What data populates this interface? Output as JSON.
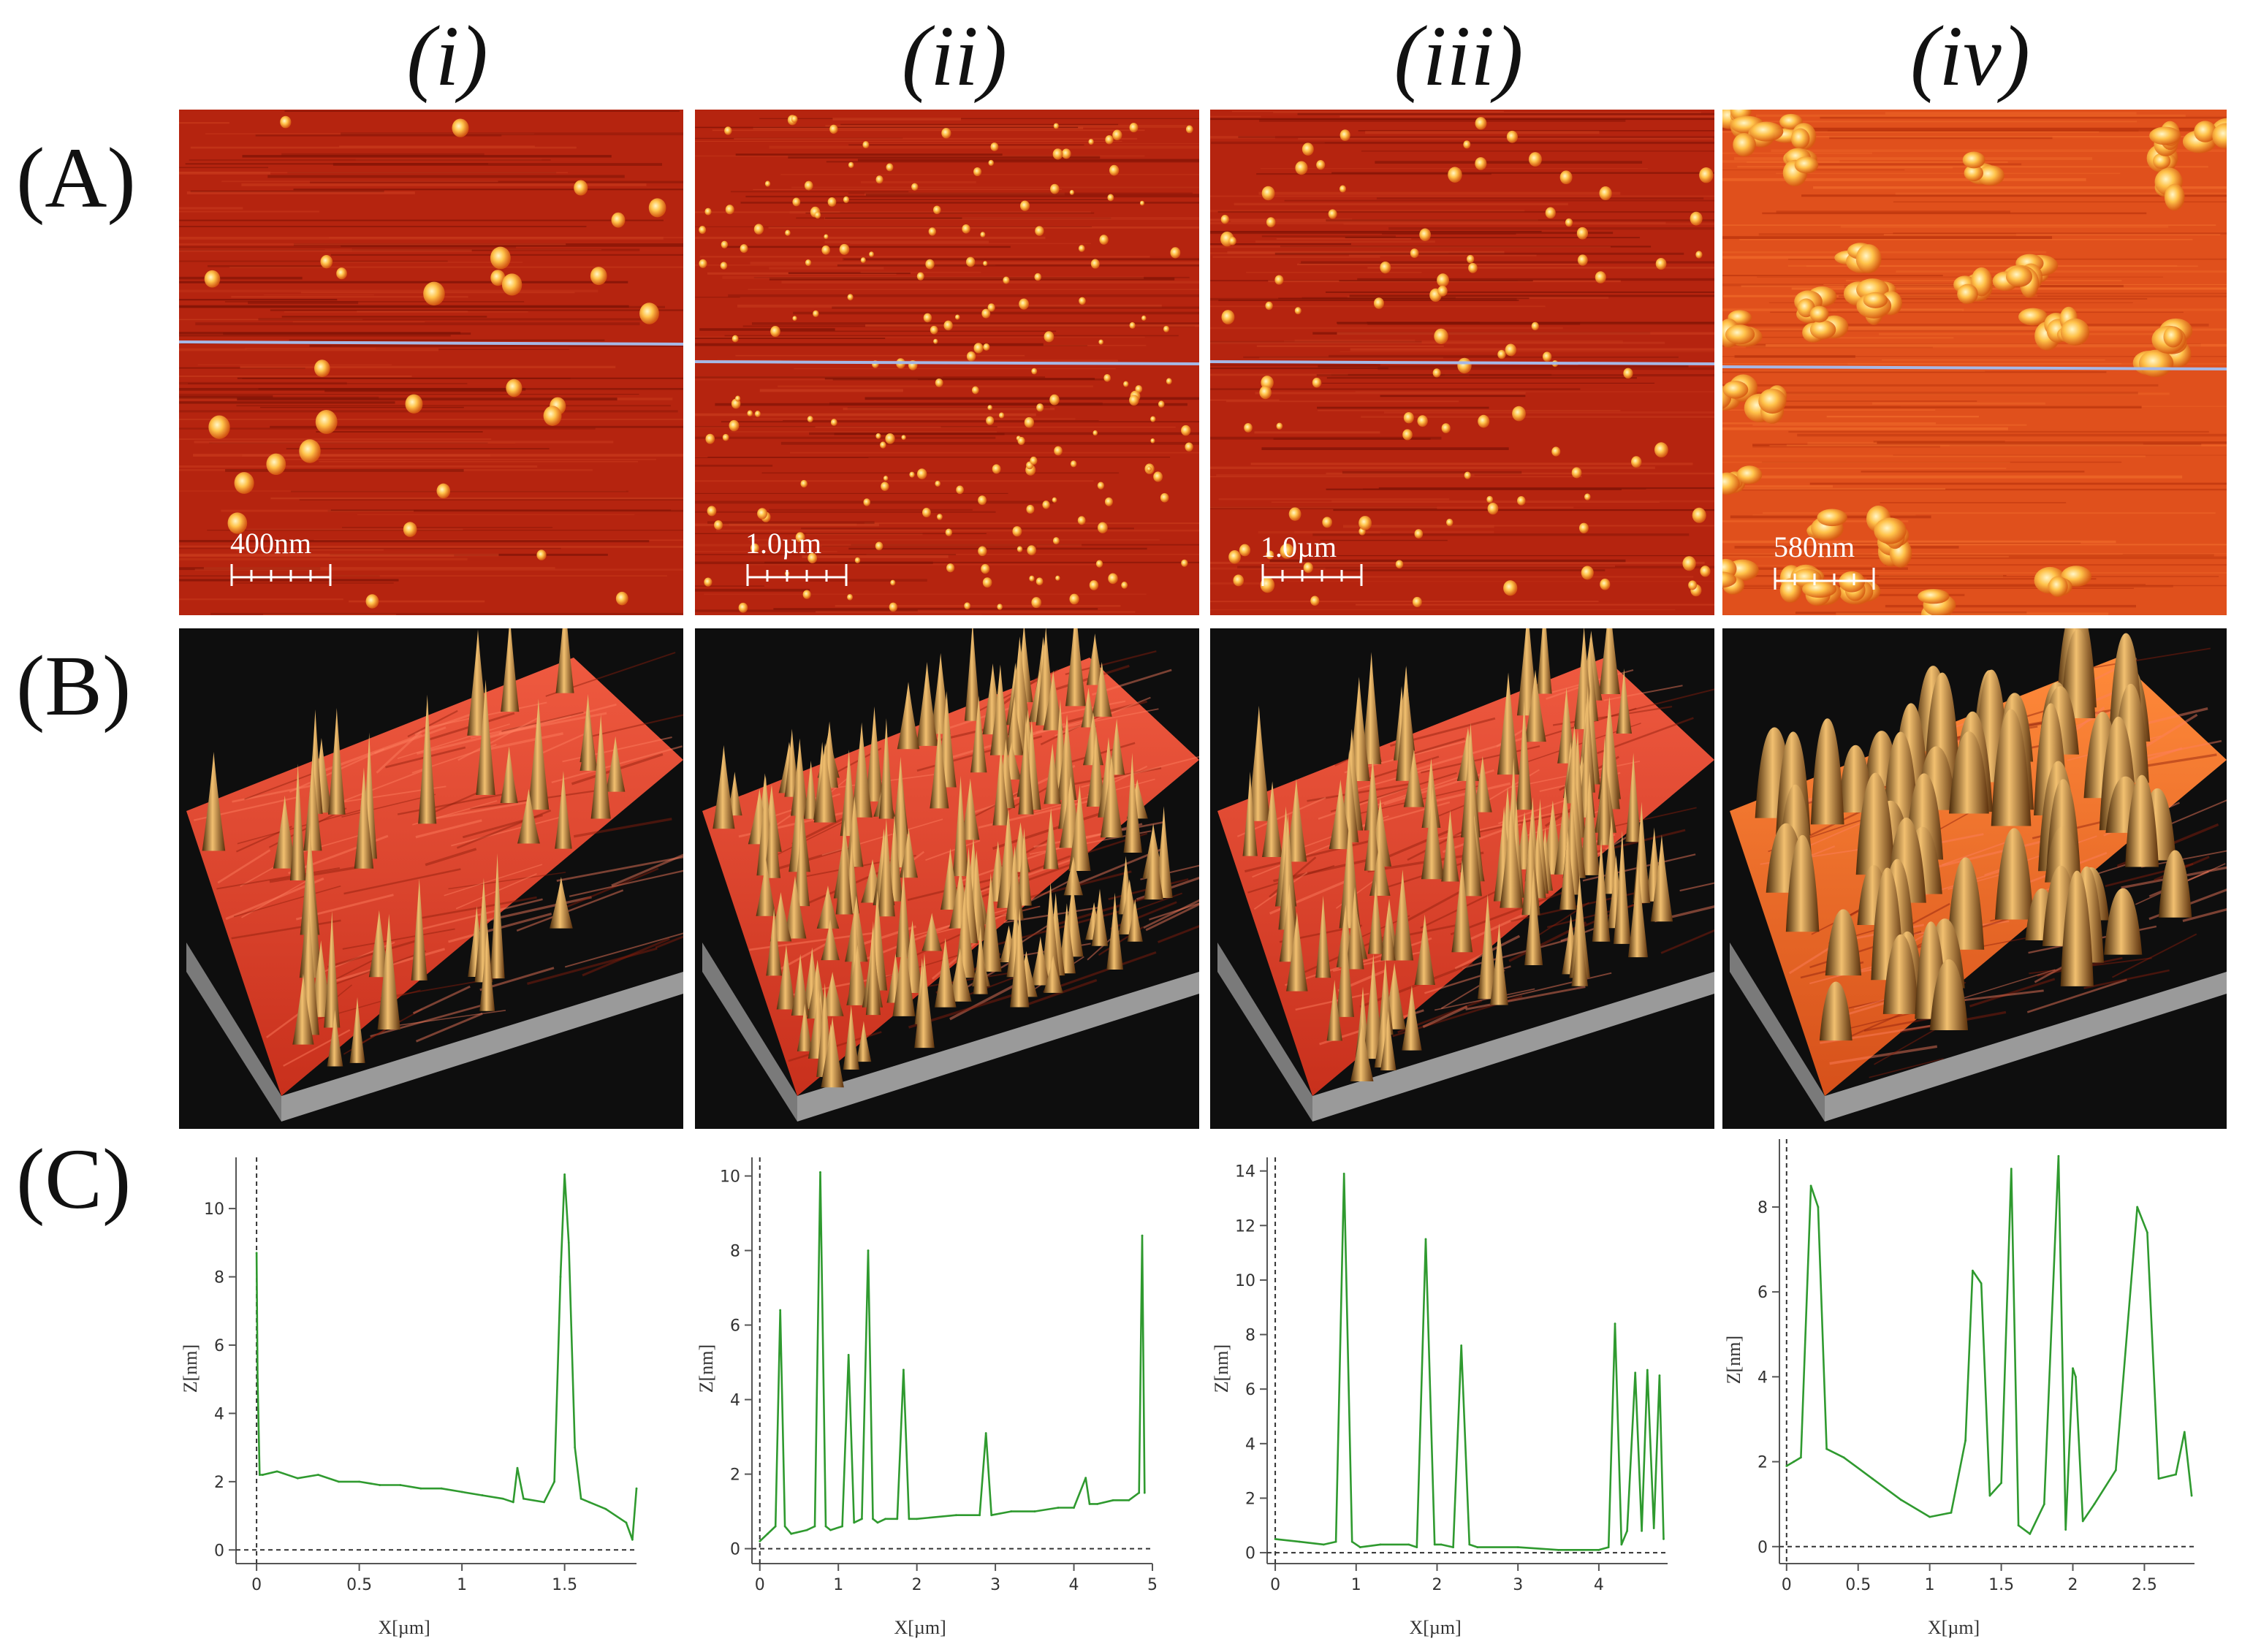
{
  "colors": {
    "afm2d_base": "#b5240f",
    "afm2d_dark": "#7d1205",
    "afm3d_bg": "#0e0e0e",
    "afm3d_surface": "#d8432c",
    "profile_line": "#2f9a2f",
    "line_cut": "#a6b8e6"
  },
  "columns": [
    "(i)",
    "(ii)",
    "(iii)",
    "(iv)"
  ],
  "rows": [
    "(A)",
    "(B)",
    "(C)"
  ],
  "panels_A": [
    {
      "scale_label": "400nm",
      "particles": "sparse-large"
    },
    {
      "scale_label": "1.0µm",
      "particles": "dense-small"
    },
    {
      "scale_label": "1.0µm",
      "particles": "medium"
    },
    {
      "scale_label": "580nm",
      "particles": "clusters"
    }
  ],
  "chart_data": [
    {
      "type": "line",
      "xlabel": "X[µm]",
      "ylabel": "Z[nm]",
      "xlim": [
        -0.1,
        1.85
      ],
      "ylim": [
        -0.4,
        11.5
      ],
      "xticks": [
        0,
        0.5,
        1,
        1.5
      ],
      "xtick_labels": [
        "0",
        "0.5",
        "1",
        "1.5"
      ],
      "yticks": [
        0,
        2,
        4,
        6,
        8,
        10
      ],
      "ytick_labels": [
        "0",
        "2",
        "4",
        "6",
        "8",
        "10"
      ],
      "x": [
        0,
        0.005,
        0.015,
        0.03,
        0.1,
        0.2,
        0.3,
        0.4,
        0.5,
        0.6,
        0.7,
        0.8,
        0.9,
        1.0,
        1.1,
        1.2,
        1.25,
        1.27,
        1.3,
        1.4,
        1.45,
        1.48,
        1.5,
        1.52,
        1.55,
        1.58,
        1.62,
        1.7,
        1.8,
        1.83,
        1.85
      ],
      "y": [
        8.7,
        5.0,
        2.2,
        2.2,
        2.3,
        2.1,
        2.2,
        2.0,
        2.0,
        1.9,
        1.9,
        1.8,
        1.8,
        1.7,
        1.6,
        1.5,
        1.4,
        2.4,
        1.5,
        1.4,
        2.0,
        8.0,
        11.0,
        9.0,
        3.0,
        1.5,
        1.4,
        1.2,
        0.8,
        0.3,
        1.8
      ]
    },
    {
      "type": "line",
      "xlabel": "X[µm]",
      "ylabel": "Z[nm]",
      "xlim": [
        -0.1,
        5.0
      ],
      "ylim": [
        -0.4,
        10.5
      ],
      "xticks": [
        0,
        1,
        2,
        3,
        4,
        5
      ],
      "xtick_labels": [
        "0",
        "1",
        "2",
        "3",
        "4",
        "5"
      ],
      "yticks": [
        0,
        2,
        4,
        6,
        8,
        10
      ],
      "ytick_labels": [
        "0",
        "2",
        "4",
        "6",
        "8",
        "10"
      ],
      "x": [
        0,
        0.1,
        0.2,
        0.26,
        0.32,
        0.4,
        0.6,
        0.7,
        0.77,
        0.84,
        0.9,
        1.05,
        1.13,
        1.2,
        1.3,
        1.38,
        1.44,
        1.5,
        1.6,
        1.75,
        1.83,
        1.9,
        2.0,
        2.5,
        2.8,
        2.88,
        2.95,
        3.2,
        3.5,
        3.8,
        4.0,
        4.15,
        4.2,
        4.3,
        4.5,
        4.7,
        4.83,
        4.87,
        4.9
      ],
      "y": [
        0.2,
        0.4,
        0.6,
        6.4,
        0.6,
        0.4,
        0.5,
        0.6,
        10.1,
        0.6,
        0.5,
        0.6,
        5.2,
        0.7,
        0.8,
        8.0,
        0.8,
        0.7,
        0.8,
        0.8,
        4.8,
        0.8,
        0.8,
        0.9,
        0.9,
        3.1,
        0.9,
        1.0,
        1.0,
        1.1,
        1.1,
        1.9,
        1.2,
        1.2,
        1.3,
        1.3,
        1.5,
        8.4,
        1.5
      ]
    },
    {
      "type": "line",
      "xlabel": "X[µm]",
      "ylabel": "Z[nm]",
      "xlim": [
        -0.1,
        4.85
      ],
      "ylim": [
        -0.4,
        14.5
      ],
      "xticks": [
        0,
        1,
        2,
        3,
        4
      ],
      "xtick_labels": [
        "0",
        "1",
        "2",
        "3",
        "4"
      ],
      "yticks": [
        0,
        2,
        4,
        6,
        8,
        10,
        12,
        14
      ],
      "ytick_labels": [
        "0",
        "2",
        "4",
        "6",
        "8",
        "10",
        "12",
        "14"
      ],
      "x": [
        0,
        0.3,
        0.6,
        0.75,
        0.85,
        0.95,
        1.05,
        1.3,
        1.65,
        1.75,
        1.86,
        1.97,
        2.05,
        2.2,
        2.3,
        2.4,
        2.5,
        3.0,
        3.5,
        4.0,
        4.12,
        4.2,
        4.28,
        4.35,
        4.45,
        4.53,
        4.6,
        4.68,
        4.75,
        4.8
      ],
      "y": [
        0.5,
        0.4,
        0.3,
        0.4,
        13.9,
        0.4,
        0.2,
        0.3,
        0.3,
        0.2,
        11.5,
        0.3,
        0.3,
        0.2,
        7.6,
        0.3,
        0.2,
        0.2,
        0.1,
        0.1,
        0.2,
        8.4,
        0.3,
        0.8,
        6.6,
        0.8,
        6.7,
        0.9,
        6.5,
        0.5
      ]
    },
    {
      "type": "line",
      "xlabel": "X[µm]",
      "ylabel": "Z[nm]",
      "xlim": [
        -0.05,
        2.85
      ],
      "ylim": [
        -0.4,
        9.6
      ],
      "xticks": [
        0,
        0.5,
        1,
        1.5,
        2,
        2.5
      ],
      "xtick_labels": [
        "0",
        "0.5",
        "1",
        "1.5",
        "2",
        "2.5"
      ],
      "yticks": [
        0,
        2,
        4,
        6,
        8
      ],
      "ytick_labels": [
        "0",
        "2",
        "4",
        "6",
        "8"
      ],
      "x": [
        0,
        0.05,
        0.1,
        0.17,
        0.22,
        0.28,
        0.4,
        0.6,
        0.8,
        1.0,
        1.15,
        1.25,
        1.3,
        1.36,
        1.42,
        1.5,
        1.57,
        1.62,
        1.7,
        1.8,
        1.9,
        1.95,
        2.0,
        2.02,
        2.07,
        2.15,
        2.3,
        2.45,
        2.52,
        2.6,
        2.72,
        2.78,
        2.83
      ],
      "y": [
        1.9,
        2.0,
        2.1,
        8.5,
        8.0,
        2.3,
        2.1,
        1.6,
        1.1,
        0.7,
        0.8,
        2.5,
        6.5,
        6.2,
        1.2,
        1.5,
        8.9,
        0.5,
        0.3,
        1.0,
        9.2,
        0.4,
        4.2,
        4.0,
        0.6,
        1.0,
        1.8,
        8.0,
        7.4,
        1.6,
        1.7,
        2.7,
        1.2
      ]
    }
  ]
}
